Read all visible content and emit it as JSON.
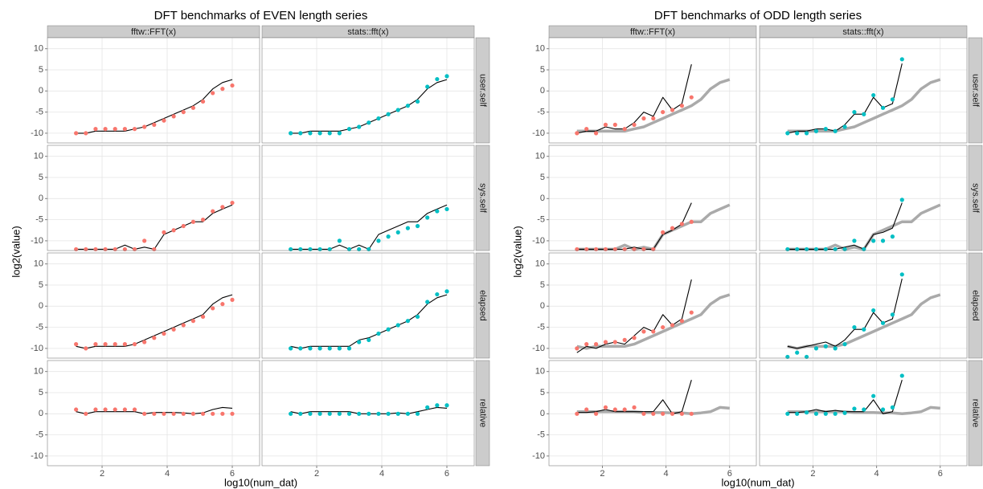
{
  "chart_data": [
    {
      "type": "facet-scatter-line",
      "title": "DFT benchmarks of EVEN length series",
      "x_label": "log10(num_dat)",
      "y_label": "log2(value)",
      "xlim": [
        0.32,
        6.84
      ],
      "xticks": [
        2,
        4,
        6
      ],
      "ylim": [
        -12.3,
        12.6
      ],
      "yticks": [
        -10,
        -5,
        0,
        5,
        10
      ],
      "grid": true,
      "line_color": "#000000",
      "columns": [
        {
          "name": "fftw::FFT(x)",
          "color": "#F8766D"
        },
        {
          "name": "stats::fft(x)",
          "color": "#00BFC4"
        }
      ],
      "rows": [
        "user.self",
        "sys.self",
        "elapsed",
        "relative"
      ],
      "x": [
        1.2,
        1.5,
        1.8,
        2.1,
        2.4,
        2.7,
        3.0,
        3.3,
        3.6,
        3.9,
        4.2,
        4.5,
        4.8,
        5.1,
        5.4,
        5.7,
        6.0
      ],
      "panels": [
        [
          {
            "points": [
              -10,
              -10,
              -9,
              -9,
              -9,
              -9,
              -9,
              -8.5,
              -8,
              -7,
              -6,
              -5,
              -4,
              -2.5,
              -0.5,
              0.5,
              1.3
            ],
            "line": [
              -10,
              -10,
              -9.5,
              -9.5,
              -9.5,
              -9.5,
              -9,
              -8.5,
              -7.5,
              -6.5,
              -5.5,
              -4.5,
              -3.5,
              -2,
              0.5,
              2,
              2.7
            ]
          },
          {
            "points": [
              -10,
              -10,
              -10,
              -10,
              -10,
              -10,
              -9,
              -8.5,
              -7.5,
              -6.5,
              -5.5,
              -4.5,
              -3.5,
              -2.5,
              1,
              2.8,
              3.5
            ],
            "line": [
              -10,
              -10,
              -9.5,
              -9.5,
              -9.5,
              -9.5,
              -9,
              -8.5,
              -7.5,
              -6.5,
              -5.5,
              -4.5,
              -3.5,
              -2,
              0.5,
              2,
              2.7
            ]
          }
        ],
        [
          {
            "points": [
              -12,
              -12,
              -12,
              -12,
              -12,
              -12,
              -12,
              -10,
              -12,
              -8,
              -7.5,
              -6.5,
              -5.5,
              -5,
              -3,
              -2,
              -1
            ],
            "line": [
              -12,
              -12,
              -12,
              -12,
              -12,
              -11,
              -12,
              -11.5,
              -12,
              -8.5,
              -7.5,
              -6.5,
              -5.5,
              -5.5,
              -3.5,
              -2.5,
              -1.5
            ]
          },
          {
            "points": [
              -12,
              -12,
              -12,
              -12,
              -12,
              -10,
              -12,
              -12,
              -12,
              -10,
              -9,
              -8,
              -7,
              -6.5,
              -4.5,
              -3,
              -2.5
            ],
            "line": [
              -12,
              -12,
              -12,
              -12,
              -12,
              -11,
              -12,
              -11,
              -12,
              -8.5,
              -7.5,
              -6.5,
              -5.5,
              -5.5,
              -3.5,
              -2.5,
              -1.5
            ]
          }
        ],
        [
          {
            "points": [
              -9,
              -10,
              -9,
              -9,
              -9,
              -9,
              -9,
              -8.5,
              -7.5,
              -6.5,
              -5.5,
              -4.5,
              -3.5,
              -2.5,
              -0.5,
              0.5,
              1.5
            ],
            "line": [
              -9.5,
              -10,
              -9.5,
              -9.5,
              -9.5,
              -9.5,
              -9,
              -8,
              -7,
              -6,
              -5,
              -4,
              -3,
              -2,
              0.5,
              2,
              2.7
            ]
          },
          {
            "points": [
              -10,
              -10,
              -10,
              -10,
              -10,
              -10,
              -10,
              -8.5,
              -8,
              -6.5,
              -5.5,
              -4.5,
              -3.5,
              -2.5,
              1,
              2.8,
              3.5
            ],
            "line": [
              -9.5,
              -10,
              -9.5,
              -9.5,
              -9.5,
              -9.5,
              -9.5,
              -8,
              -7.5,
              -6.5,
              -5.5,
              -4.5,
              -3.5,
              -2,
              0.5,
              2,
              2.7
            ]
          }
        ],
        [
          {
            "points": [
              1,
              0,
              1,
              1,
              1,
              1,
              1,
              0,
              0,
              0,
              0,
              0,
              0,
              0,
              0,
              0,
              0
            ],
            "line": [
              0.5,
              0,
              0.5,
              0.5,
              0.5,
              0.5,
              0.5,
              0,
              0.3,
              0.3,
              0.3,
              0.2,
              0,
              0.2,
              1,
              1.5,
              1.3
            ]
          },
          {
            "points": [
              0,
              0,
              0,
              0,
              0,
              0,
              0,
              0,
              0,
              0,
              0,
              0,
              0,
              0,
              1.5,
              2,
              2
            ],
            "line": [
              0.5,
              0,
              0.5,
              0.5,
              0.5,
              0.5,
              0.5,
              0,
              0,
              0,
              0,
              0.2,
              0,
              0.5,
              1,
              1.5,
              1.3
            ]
          }
        ]
      ]
    },
    {
      "type": "facet-scatter-line",
      "title": "DFT benchmarks of ODD length series",
      "x_label": "log10(num_dat)",
      "y_label": "log2(value)",
      "xlim": [
        0.32,
        6.84
      ],
      "xticks": [
        2,
        4,
        6
      ],
      "ylim": [
        -12.3,
        12.6
      ],
      "yticks": [
        -10,
        -5,
        0,
        5,
        10
      ],
      "grid": true,
      "line_color": "#000000",
      "reference_color": "#aaaaaa",
      "columns": [
        {
          "name": "fftw::FFT(x)",
          "color": "#F8766D"
        },
        {
          "name": "stats::fft(x)",
          "color": "#00BFC4"
        }
      ],
      "rows": [
        "user.self",
        "sys.self",
        "elapsed",
        "relative"
      ],
      "x": [
        1.2,
        1.5,
        1.8,
        2.1,
        2.4,
        2.7,
        3.0,
        3.3,
        3.6,
        3.9,
        4.2,
        4.5,
        4.8
      ],
      "reference_x": [
        1.2,
        1.5,
        1.8,
        2.1,
        2.4,
        2.7,
        3.0,
        3.3,
        3.6,
        3.9,
        4.2,
        4.5,
        4.8,
        5.1,
        5.4,
        5.7,
        6.0
      ],
      "panels": [
        [
          {
            "points": [
              -10,
              -9,
              -10,
              -8,
              -8,
              -9,
              -8,
              -6.5,
              -6.5,
              -5,
              -4.5,
              -3.5,
              -1.5
            ],
            "line": [
              -10,
              -9.5,
              -9.5,
              -8.5,
              -9,
              -9,
              -7.5,
              -5,
              -6,
              -1.5,
              -4.5,
              -3,
              6.3
            ],
            "reference": [
              -9.5,
              -9.5,
              -9.5,
              -9.5,
              -9.5,
              -9.5,
              -9,
              -8.5,
              -7.5,
              -6.5,
              -5.5,
              -4.5,
              -3.5,
              -2,
              0.5,
              2,
              2.7
            ]
          },
          {
            "points": [
              -10,
              -10,
              -10,
              -9.5,
              -9,
              -9.5,
              -8.5,
              -5,
              -5.5,
              -1,
              -4,
              -2,
              7.5
            ],
            "line": [
              -10,
              -9.5,
              -9.5,
              -9,
              -9,
              -9.5,
              -8,
              -5.5,
              -5.5,
              -1.5,
              -4,
              -3,
              6.5
            ],
            "reference": [
              -9.5,
              -9.5,
              -9.5,
              -9.5,
              -9.5,
              -9.5,
              -9,
              -8.5,
              -7.5,
              -6.5,
              -5.5,
              -4.5,
              -3.5,
              -2,
              0.5,
              2,
              2.7
            ]
          }
        ],
        [
          {
            "points": [
              -12,
              -12,
              -12,
              -12,
              -12,
              -12,
              -12,
              -12,
              -12,
              -8,
              -7,
              -6,
              -5.5
            ],
            "line": [
              -12,
              -12,
              -12,
              -12,
              -12,
              -12,
              -11.5,
              -12,
              -12,
              -8.5,
              -7.5,
              -6,
              -1
            ],
            "reference": [
              -12,
              -12,
              -12,
              -12,
              -12,
              -11,
              -12,
              -11.5,
              -12,
              -8.5,
              -7.5,
              -6.5,
              -5.5,
              -5.5,
              -3.5,
              -2.5,
              -1.5
            ]
          },
          {
            "points": [
              -12,
              -12,
              -12,
              -12,
              -12,
              -12,
              -12,
              -10,
              -12,
              -10,
              -10,
              -9,
              -0.3
            ],
            "line": [
              -12,
              -12,
              -12,
              -12,
              -12,
              -12,
              -11.5,
              -11,
              -12,
              -8.5,
              -8,
              -7,
              -1
            ],
            "reference": [
              -12,
              -12,
              -12,
              -12,
              -12,
              -11,
              -12,
              -11.5,
              -12,
              -8.5,
              -7.5,
              -6.5,
              -5.5,
              -5.5,
              -3.5,
              -2.5,
              -1.5
            ]
          }
        ],
        [
          {
            "points": [
              -10,
              -9,
              -9,
              -8.5,
              -8.5,
              -8,
              -7.5,
              -6,
              -6,
              -5,
              -4.5,
              -3.5,
              -1.5
            ],
            "line": [
              -11,
              -9.5,
              -10,
              -9,
              -8.5,
              -9,
              -7,
              -5,
              -6,
              -2,
              -4.5,
              -3,
              6.3
            ],
            "reference": [
              -9.5,
              -10,
              -9.5,
              -9.5,
              -9.5,
              -9.5,
              -9,
              -8,
              -7,
              -6,
              -5,
              -4,
              -3,
              -2,
              0.5,
              2,
              2.7
            ]
          },
          {
            "points": [
              -12,
              -11,
              -12,
              -10,
              -9.5,
              -10,
              -9,
              -5,
              -5.5,
              -1,
              -4,
              -2,
              7.5
            ],
            "line": [
              -9.5,
              -10,
              -9.5,
              -9,
              -8.5,
              -9.5,
              -8,
              -5.5,
              -5.5,
              -1.5,
              -4,
              -3,
              6.5
            ],
            "reference": [
              -9.5,
              -10,
              -9.5,
              -9.5,
              -9.5,
              -9.5,
              -9,
              -8,
              -7,
              -6,
              -5,
              -4,
              -3,
              -2,
              0.5,
              2,
              2.7
            ]
          }
        ],
        [
          {
            "points": [
              0,
              1,
              0,
              1.5,
              1,
              1,
              1.5,
              0,
              0,
              0,
              0,
              0,
              0
            ],
            "line": [
              0.3,
              0.3,
              0.5,
              1,
              0.5,
              0.5,
              0.5,
              0.5,
              0.5,
              3.3,
              0,
              0.5,
              8
            ],
            "reference": [
              0.5,
              0.5,
              0.5,
              0.5,
              0.5,
              0.5,
              0.5,
              0.3,
              0.3,
              0.3,
              0.2,
              0.2,
              0,
              0.2,
              0.5,
              1.5,
              1.3
            ]
          },
          {
            "points": [
              0,
              0,
              0.3,
              0,
              0,
              0,
              0.2,
              1.2,
              1,
              4.2,
              1,
              1.5,
              9
            ],
            "line": [
              0.3,
              0.3,
              0.5,
              1,
              0.5,
              0.8,
              0.5,
              0.5,
              0.5,
              3.3,
              0,
              0.5,
              8
            ],
            "reference": [
              0.5,
              0.5,
              0.5,
              0.5,
              0.5,
              0.5,
              0.5,
              0.3,
              0.3,
              0.3,
              0.2,
              0.2,
              0,
              0.2,
              0.5,
              1.5,
              1.3
            ]
          }
        ]
      ]
    }
  ]
}
